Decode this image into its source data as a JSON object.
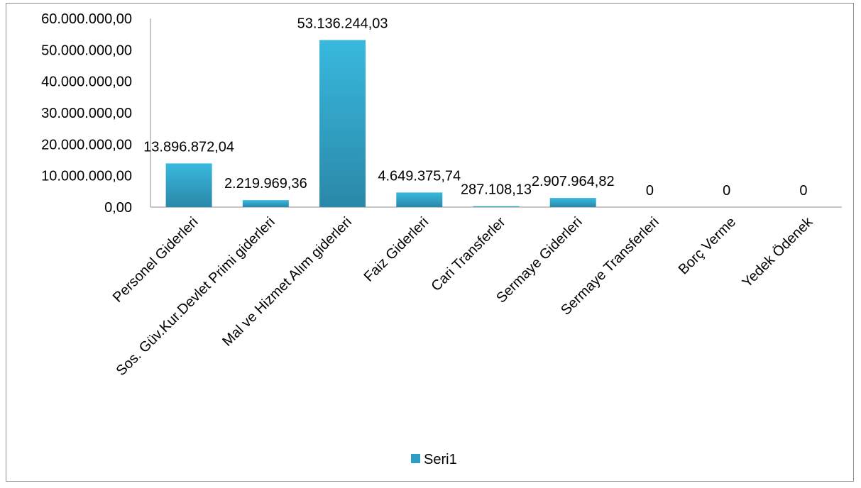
{
  "chart_data": {
    "type": "bar",
    "categories": [
      "Personel Giderleri",
      "Sos. Güv.Kur.Devlet Primi giderleri",
      "Mal ve Hizmet Alım giderleri",
      "Faiz Giderleri",
      "Cari Transferler",
      "Sermaye Giderleri",
      "Sermaye Transferleri",
      "Borç Verme",
      "Yedek Ödenek"
    ],
    "series": [
      {
        "name": "Seri1",
        "values": [
          13896872.04,
          2219969.36,
          53136244.03,
          4649375.74,
          287108.13,
          2907964.82,
          0,
          0,
          0
        ],
        "labels": [
          "13.896.872,04",
          "2.219.969,36",
          "53.136.244,03",
          "4.649.375,74",
          "287.108,13",
          "2.907.964,82",
          "0",
          "0",
          "0"
        ],
        "color": "#2e9ec6"
      }
    ],
    "yticks": [
      "0,00",
      "10.000.000,00",
      "20.000.000,00",
      "30.000.000,00",
      "40.000.000,00",
      "50.000.000,00",
      "60.000.000,00"
    ],
    "ylim": [
      0,
      60000000
    ],
    "grid": false,
    "legend_position": "bottom"
  }
}
